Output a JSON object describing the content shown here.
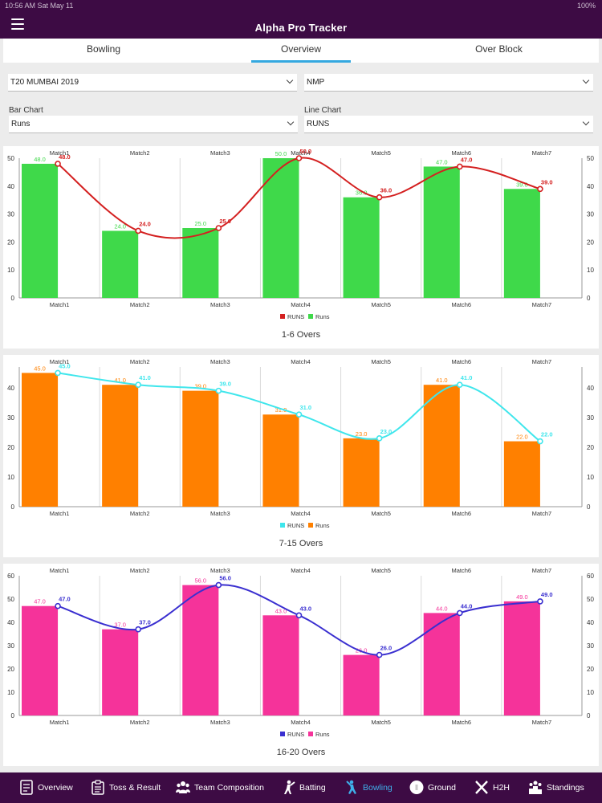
{
  "status": {
    "left": "10:56 AM   Sat May 11",
    "right": "100%"
  },
  "app": {
    "title": "Alpha Pro Tracker"
  },
  "tabs": [
    {
      "label": "Bowling"
    },
    {
      "label": "Overview",
      "active": true
    },
    {
      "label": "Over Block"
    }
  ],
  "filters": {
    "tournament": "T20 MUMBAI 2019",
    "team": "NMP",
    "bar_chart_label": "Bar Chart",
    "bar_chart_value": "Runs",
    "line_chart_label": "Line Chart",
    "line_chart_value": "RUNS"
  },
  "colors": {
    "header_bg": "#3d0b44",
    "tab_indicator": "#34a8e0",
    "active_nav": "#3fb0ea"
  },
  "chart_data": [
    {
      "type": "bar",
      "title": "1-6 Overs",
      "categories": [
        "Match1",
        "Match2",
        "Match3",
        "Match4",
        "Match5",
        "Match6",
        "Match7"
      ],
      "ylim": [
        0,
        50
      ],
      "yticks": [
        0,
        10,
        20,
        30,
        40,
        50
      ],
      "grid": "vertical",
      "legend_position": "bottom-center",
      "bar_color": "#3fd94a",
      "line_color": "#d42020",
      "series": [
        {
          "name": "Runs",
          "kind": "bar",
          "values": [
            48.0,
            24.0,
            25.0,
            50.0,
            36.0,
            47.0,
            39.0
          ]
        },
        {
          "name": "RUNS",
          "kind": "line",
          "values": [
            48.0,
            24.0,
            25.0,
            50.0,
            36.0,
            47.0,
            39.0
          ]
        }
      ],
      "legend": [
        "RUNS",
        "Runs"
      ]
    },
    {
      "type": "bar",
      "title": "7-15 Overs",
      "categories": [
        "Match1",
        "Match2",
        "Match3",
        "Match4",
        "Match5",
        "Match6",
        "Match7"
      ],
      "ylim": [
        0,
        47
      ],
      "yticks": [
        0,
        10,
        20,
        30,
        40
      ],
      "grid": "vertical",
      "legend_position": "bottom-center",
      "bar_color": "#ff8000",
      "line_color": "#3fe6ec",
      "series": [
        {
          "name": "Runs",
          "kind": "bar",
          "values": [
            45.0,
            41.0,
            39.0,
            31.0,
            23.0,
            41.0,
            22.0
          ]
        },
        {
          "name": "RUNS",
          "kind": "line",
          "values": [
            45.0,
            41.0,
            39.0,
            31.0,
            23.0,
            41.0,
            22.0
          ]
        }
      ],
      "legend": [
        "RUNS",
        "Runs"
      ]
    },
    {
      "type": "bar",
      "title": "16-20 Overs",
      "categories": [
        "Match1",
        "Match2",
        "Match3",
        "Match4",
        "Match5",
        "Match6",
        "Match7"
      ],
      "ylim": [
        0,
        60
      ],
      "yticks": [
        0,
        10,
        20,
        30,
        40,
        50,
        60
      ],
      "grid": "vertical",
      "legend_position": "bottom-center",
      "bar_color": "#f5339a",
      "line_color": "#3a2fd0",
      "series": [
        {
          "name": "Runs",
          "kind": "bar",
          "values": [
            47.0,
            37.0,
            56.0,
            43.0,
            26.0,
            44.0,
            49.0
          ]
        },
        {
          "name": "RUNS",
          "kind": "line",
          "values": [
            47.0,
            37.0,
            56.0,
            43.0,
            26.0,
            44.0,
            49.0
          ]
        }
      ],
      "legend": [
        "RUNS",
        "Runs"
      ]
    }
  ],
  "bottom_nav": [
    {
      "label": "Overview",
      "icon": "overview-icon"
    },
    {
      "label": "Toss & Result",
      "icon": "clipboard-icon"
    },
    {
      "label": "Team Composition",
      "icon": "team-icon"
    },
    {
      "label": "Batting",
      "icon": "batsman-icon"
    },
    {
      "label": "Bowling",
      "icon": "bowler-icon",
      "active": true
    },
    {
      "label": "Ground",
      "icon": "ground-icon"
    },
    {
      "label": "H2H",
      "icon": "h2h-icon"
    },
    {
      "label": "Standings",
      "icon": "standings-icon"
    }
  ]
}
